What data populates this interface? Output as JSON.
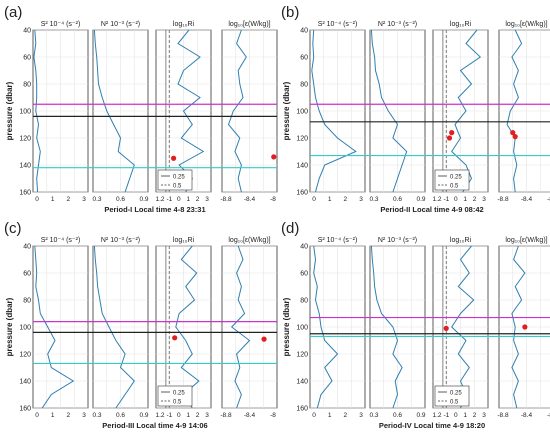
{
  "chart_data": [
    {
      "type": "line",
      "panel_label": "(a)",
      "caption": "Period-I Local time 4-8 23:31",
      "ylabel": "pressure (dbar)",
      "ylim": [
        160,
        40
      ],
      "yticks": [
        40,
        60,
        80,
        100,
        120,
        140,
        160
      ],
      "hlines": [
        {
          "p": 95,
          "color": "#cc33cc"
        },
        {
          "p": 104,
          "color": "#222222"
        },
        {
          "p": 142,
          "color": "#33cccc"
        }
      ],
      "subplots": [
        {
          "title": "S² 10⁻⁴ (s⁻²)",
          "xlim": [
            0,
            3
          ],
          "xticks": [
            "0",
            "1",
            "2",
            "3"
          ],
          "y": [
            40,
            50,
            60,
            70,
            80,
            90,
            100,
            110,
            120,
            130,
            140,
            150,
            160
          ],
          "x": [
            0.1,
            0.15,
            0.05,
            0.15,
            0.2,
            0.2,
            0.15,
            0.3,
            0.2,
            0.4,
            0.3,
            0.2,
            0.25
          ]
        },
        {
          "title": "N² 10⁻³ (s⁻²)",
          "xlim": [
            0,
            1.2
          ],
          "xticks": [
            "0.3",
            "0.6",
            "0.9"
          ],
          "y": [
            40,
            50,
            60,
            70,
            80,
            90,
            100,
            110,
            120,
            130,
            140,
            150,
            160
          ],
          "x": [
            0.03,
            0.05,
            0.08,
            0.1,
            0.12,
            0.2,
            0.3,
            0.45,
            0.6,
            0.55,
            0.9,
            0.8,
            0.7
          ]
        },
        {
          "title": "log₁₀Ri",
          "xlim": [
            -1.5,
            3.5
          ],
          "xticks": [
            "1.2",
            "-1",
            "0",
            "1",
            "2",
            "3"
          ],
          "legend": [
            "0.25",
            "0.5"
          ],
          "vlines": [
            -0.6,
            -0.3
          ],
          "y": [
            40,
            50,
            60,
            70,
            80,
            90,
            100,
            110,
            120,
            130,
            140,
            150,
            160
          ],
          "x": [
            1.5,
            0.5,
            2.5,
            1.0,
            0.5,
            2.5,
            1.0,
            1.8,
            0.8,
            2.8,
            0.6,
            1.8,
            1.2
          ],
          "markers": [
            {
              "x": 0.1,
              "p": 135
            }
          ]
        },
        {
          "title": "log₁₀[ε(W/kg)]",
          "xlim": [
            -9.2,
            -5.8
          ],
          "xticks": [
            "-8.8",
            "-8.4",
            "-8"
          ],
          "y": [
            40,
            50,
            60,
            70,
            80,
            90,
            100,
            110,
            120,
            130,
            140,
            150,
            160
          ],
          "x": [
            -8.0,
            -8.3,
            -7.7,
            -8.2,
            -8.1,
            -7.9,
            -8.5,
            -8.8,
            -8.1,
            -8.4,
            -8.0,
            -8.2,
            -8.0
          ],
          "markers": [
            {
              "x": -6.0,
              "p": 134
            }
          ]
        }
      ]
    },
    {
      "type": "line",
      "panel_label": "(b)",
      "caption": "Period-II Local time 4-9 08:42",
      "ylabel": "pressure (dbar)",
      "ylim": [
        160,
        40
      ],
      "yticks": [
        40,
        60,
        80,
        100,
        120,
        140,
        160
      ],
      "hlines": [
        {
          "p": 95,
          "color": "#cc33cc"
        },
        {
          "p": 108,
          "color": "#222222"
        },
        {
          "p": 133,
          "color": "#33cccc"
        }
      ],
      "subplots": [
        {
          "title": "S² 10⁻⁴ (s⁻²)",
          "xlim": [
            0,
            3
          ],
          "xticks": [
            "0",
            "1",
            "2",
            "3"
          ],
          "y": [
            40,
            50,
            60,
            70,
            80,
            90,
            100,
            110,
            120,
            130,
            140,
            150,
            160
          ],
          "x": [
            0.2,
            0.15,
            0.2,
            0.1,
            0.2,
            0.3,
            0.5,
            0.8,
            1.5,
            2.5,
            0.8,
            0.5,
            0.3
          ]
        },
        {
          "title": "N² 10⁻³ (s⁻²)",
          "xlim": [
            0,
            1.2
          ],
          "xticks": [
            "0.3",
            "0.6",
            "0.9"
          ],
          "y": [
            40,
            50,
            60,
            70,
            80,
            90,
            100,
            110,
            120,
            130,
            140,
            150,
            160
          ],
          "x": [
            0.03,
            0.05,
            0.1,
            0.12,
            0.2,
            0.25,
            0.4,
            0.6,
            0.5,
            0.8,
            0.7,
            0.6,
            0.5
          ]
        },
        {
          "title": "log₁₀Ri",
          "xlim": [
            -1.5,
            3.5
          ],
          "xticks": [
            "1.2",
            "-1",
            "0",
            "1",
            "2",
            "3"
          ],
          "legend": [
            "0.25",
            "0.5"
          ],
          "vlines": [
            -0.6,
            -0.3
          ],
          "y": [
            40,
            50,
            60,
            70,
            80,
            90,
            100,
            110,
            120,
            130,
            140,
            150,
            160
          ],
          "x": [
            2.5,
            1.5,
            2.8,
            1.0,
            2.0,
            0.8,
            1.5,
            0.5,
            1.0,
            0.2,
            1.5,
            2.0,
            1.2
          ],
          "markers": [
            {
              "x": 0.2,
              "p": 116
            },
            {
              "x": 0.0,
              "p": 120
            }
          ]
        },
        {
          "title": "log₁₀[ε(W/kg)]",
          "xlim": [
            -9.2,
            -5.8
          ],
          "xticks": [
            "-8.8",
            "-8.4",
            "-8"
          ],
          "y": [
            40,
            50,
            60,
            70,
            80,
            90,
            100,
            110,
            120,
            130,
            140,
            150,
            160
          ],
          "x": [
            -8.2,
            -7.8,
            -8.4,
            -8.0,
            -8.3,
            -8.0,
            -8.5,
            -8.7,
            -8.2,
            -8.3,
            -8.1,
            -8.3,
            -8.2
          ],
          "markers": [
            {
              "x": -8.35,
              "p": 116
            },
            {
              "x": -8.2,
              "p": 119
            }
          ]
        }
      ]
    },
    {
      "type": "line",
      "panel_label": "(c)",
      "caption": "Period-III Local time 4-9 14:06",
      "ylabel": "pressure (dbar)",
      "ylim": [
        160,
        40
      ],
      "yticks": [
        40,
        60,
        80,
        100,
        120,
        140,
        160
      ],
      "hlines": [
        {
          "p": 96,
          "color": "#cc33cc"
        },
        {
          "p": 104,
          "color": "#222222"
        },
        {
          "p": 127,
          "color": "#33cccc"
        }
      ],
      "subplots": [
        {
          "title": "S² 10⁻⁴ (s⁻²)",
          "xlim": [
            0,
            3
          ],
          "xticks": [
            "0",
            "1",
            "2",
            "3"
          ],
          "y": [
            40,
            50,
            60,
            70,
            80,
            90,
            100,
            110,
            120,
            130,
            140,
            150,
            160
          ],
          "x": [
            0.1,
            0.15,
            0.2,
            0.15,
            0.3,
            0.4,
            0.8,
            1.2,
            0.8,
            1.0,
            2.2,
            1.0,
            0.5
          ]
        },
        {
          "title": "N² 10⁻³ (s⁻²)",
          "xlim": [
            0,
            1.2
          ],
          "xticks": [
            "0.3",
            "0.6",
            "0.9"
          ],
          "y": [
            40,
            50,
            60,
            70,
            80,
            90,
            100,
            110,
            120,
            130,
            140,
            150,
            160
          ],
          "x": [
            0.03,
            0.05,
            0.08,
            0.1,
            0.15,
            0.2,
            0.35,
            0.5,
            0.7,
            0.6,
            0.9,
            0.7,
            0.5
          ]
        },
        {
          "title": "log₁₀Ri",
          "xlim": [
            -1.5,
            3.5
          ],
          "xticks": [
            "1.2",
            "-1",
            "0",
            "1",
            "2",
            "3"
          ],
          "legend": [
            "0.25",
            "0.5"
          ],
          "vlines": [
            -0.6,
            -0.3
          ],
          "y": [
            40,
            50,
            60,
            70,
            80,
            90,
            100,
            110,
            120,
            130,
            140,
            150,
            160
          ],
          "x": [
            1.8,
            0.8,
            2.2,
            1.2,
            2.0,
            0.6,
            0.3,
            1.2,
            1.8,
            0.8,
            2.4,
            1.0,
            1.8
          ],
          "markers": [
            {
              "x": 0.2,
              "p": 108
            }
          ]
        },
        {
          "title": "log₁₀[ε(W/kg)]",
          "xlim": [
            -9.2,
            -5.8
          ],
          "xticks": [
            "-8.8",
            "-8.4",
            "-8"
          ],
          "y": [
            40,
            50,
            60,
            70,
            80,
            90,
            100,
            110,
            120,
            130,
            140,
            150,
            160
          ],
          "x": [
            -8.2,
            -7.9,
            -8.3,
            -8.0,
            -8.2,
            -7.8,
            -8.6,
            -7.5,
            -8.3,
            -8.1,
            -8.4,
            -8.0,
            -8.3
          ],
          "markers": [
            {
              "x": -6.6,
              "p": 109
            }
          ]
        }
      ]
    },
    {
      "type": "line",
      "panel_label": "(d)",
      "caption": "Period-IV Local time 4-9 18:20",
      "ylabel": "pressure (dbar)",
      "ylim": [
        160,
        40
      ],
      "yticks": [
        40,
        60,
        80,
        100,
        120,
        140,
        160
      ],
      "hlines": [
        {
          "p": 93,
          "color": "#cc33cc"
        },
        {
          "p": 105,
          "color": "#222222"
        },
        {
          "p": 107,
          "color": "#33cccc"
        }
      ],
      "subplots": [
        {
          "title": "S² 10⁻⁴ (s⁻²)",
          "xlim": [
            0,
            3
          ],
          "xticks": [
            "0",
            "1",
            "2",
            "3"
          ],
          "y": [
            40,
            50,
            60,
            70,
            80,
            90,
            100,
            110,
            120,
            130,
            140,
            150,
            160
          ],
          "x": [
            0.2,
            0.3,
            0.2,
            0.4,
            0.3,
            0.5,
            0.6,
            0.8,
            1.5,
            0.8,
            1.2,
            0.6,
            0.4
          ]
        },
        {
          "title": "N² 10⁻³ (s⁻²)",
          "xlim": [
            0,
            1.2
          ],
          "xticks": [
            "0.3",
            "0.6",
            "0.9"
          ],
          "y": [
            40,
            50,
            60,
            70,
            80,
            90,
            100,
            110,
            120,
            130,
            140,
            150,
            160
          ],
          "x": [
            0.03,
            0.05,
            0.08,
            0.1,
            0.15,
            0.25,
            0.5,
            0.6,
            0.5,
            0.7,
            0.55,
            0.6,
            0.5
          ]
        },
        {
          "title": "log₁₀Ri",
          "xlim": [
            -1.5,
            3.5
          ],
          "xticks": [
            "1.2",
            "-1",
            "0",
            "1",
            "2",
            "3"
          ],
          "legend": [
            "0.25",
            "0.5"
          ],
          "vlines": [
            -0.6,
            -0.3
          ],
          "y": [
            40,
            50,
            60,
            70,
            80,
            90,
            100,
            110,
            120,
            130,
            140,
            150,
            160
          ],
          "x": [
            2.0,
            1.0,
            1.8,
            0.8,
            2.2,
            1.0,
            0.2,
            1.5,
            0.8,
            1.8,
            1.0,
            1.5,
            1.0
          ],
          "markers": [
            {
              "x": -0.3,
              "p": 101
            }
          ]
        },
        {
          "title": "log₁₀[ε(W/kg)]",
          "xlim": [
            -9.2,
            -5.8
          ],
          "xticks": [
            "-8.8",
            "-8.4",
            "-8"
          ],
          "y": [
            40,
            50,
            60,
            70,
            80,
            90,
            100,
            110,
            120,
            130,
            140,
            150,
            160
          ],
          "x": [
            -8.0,
            -8.3,
            -7.6,
            -8.2,
            -7.8,
            -8.4,
            -8.2,
            -8.3,
            -8.0,
            -8.4,
            -8.0,
            -8.3,
            -8.1
          ],
          "markers": [
            {
              "x": -7.6,
              "p": 100
            }
          ]
        }
      ]
    }
  ]
}
